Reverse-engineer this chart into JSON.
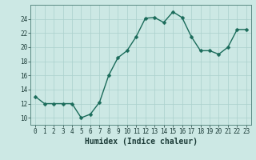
{
  "x": [
    0,
    1,
    2,
    3,
    4,
    5,
    6,
    7,
    8,
    9,
    10,
    11,
    12,
    13,
    14,
    15,
    16,
    17,
    18,
    19,
    20,
    21,
    22,
    23
  ],
  "y": [
    13,
    12,
    12,
    12,
    12,
    10,
    10.5,
    12.2,
    16,
    18.5,
    19.5,
    21.5,
    24.1,
    24.2,
    23.5,
    25,
    24.2,
    21.5,
    19.5,
    19.5,
    19,
    20,
    22.5,
    22.5
  ],
  "line_color": "#1a6b5a",
  "marker_color": "#1a6b5a",
  "bg_color": "#cce8e4",
  "grid_color": "#aad0cc",
  "axis_color": "#5a8a84",
  "xlabel": "Humidex (Indice chaleur)",
  "xlim": [
    -0.5,
    23.5
  ],
  "ylim": [
    9,
    26
  ],
  "yticks": [
    10,
    12,
    14,
    16,
    18,
    20,
    22,
    24
  ],
  "xticks": [
    0,
    1,
    2,
    3,
    4,
    5,
    6,
    7,
    8,
    9,
    10,
    11,
    12,
    13,
    14,
    15,
    16,
    17,
    18,
    19,
    20,
    21,
    22,
    23
  ],
  "xlabel_fontsize": 7,
  "tick_fontsize": 5.5,
  "line_width": 1.0,
  "marker_size": 2.5
}
